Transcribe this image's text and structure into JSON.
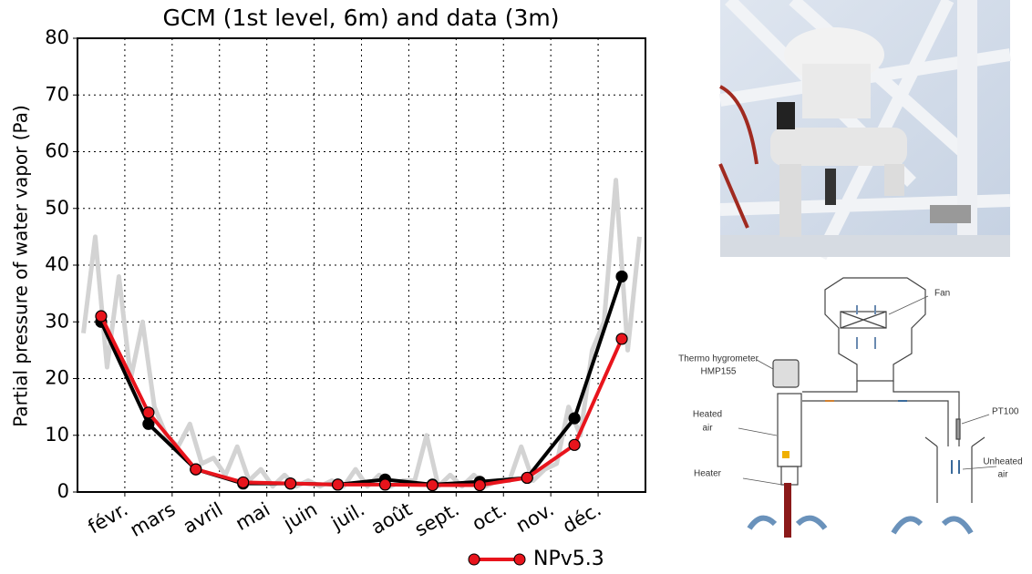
{
  "chart_data": {
    "type": "line",
    "title": "GCM (1st level, 6m) and data (3m)",
    "y_label": "Partial pressure of water vapor (Pa)",
    "xlim": [
      0,
      12
    ],
    "xticks": [
      {
        "value": 1,
        "label": "févr."
      },
      {
        "value": 2,
        "label": "mars"
      },
      {
        "value": 3,
        "label": "avril"
      },
      {
        "value": 4,
        "label": "mai"
      },
      {
        "value": 5,
        "label": "juin"
      },
      {
        "value": 6,
        "label": "juil."
      },
      {
        "value": 7,
        "label": "août"
      },
      {
        "value": 8,
        "label": "sept."
      },
      {
        "value": 9,
        "label": "oct."
      },
      {
        "value": 10,
        "label": "nov."
      },
      {
        "value": 11,
        "label": "déc."
      }
    ],
    "ylim": [
      0,
      80
    ],
    "yticks": [
      0,
      10,
      20,
      30,
      40,
      50,
      60,
      70,
      80
    ],
    "grid": true,
    "legend": "bottom",
    "series": [
      {
        "color": "#d3d3d3",
        "x": [
          0.125,
          0.375,
          0.625,
          0.875,
          1.125,
          1.375,
          1.625,
          1.875,
          2.125,
          2.375,
          2.625,
          2.875,
          3.125,
          3.375,
          3.625,
          3.875,
          4.125,
          4.375,
          4.625,
          4.875,
          5.125,
          5.375,
          5.625,
          5.875,
          6.125,
          6.375,
          6.625,
          6.875,
          7.125,
          7.375,
          7.625,
          7.875,
          8.125,
          8.375,
          8.625,
          8.875,
          9.125,
          9.375,
          9.625,
          9.875,
          10.125,
          10.375,
          10.625,
          10.875,
          11.125,
          11.375,
          11.625,
          11.875
        ],
        "values": [
          28,
          45,
          22,
          38,
          20,
          30,
          15,
          10,
          8,
          12,
          5,
          6,
          3,
          8,
          2,
          4,
          1,
          3,
          1,
          2,
          1,
          2,
          1,
          4,
          1,
          3,
          1,
          2,
          2,
          10,
          1,
          3,
          1,
          3,
          1,
          2,
          2,
          8,
          2,
          4,
          5,
          15,
          10,
          25,
          30,
          55,
          25,
          45
        ]
      },
      {
        "color": "#000000",
        "x": [
          0.5,
          1.5,
          2.5,
          3.5,
          4.5,
          5.5,
          6.5,
          7.5,
          8.5,
          9.5,
          10.5,
          11.5
        ],
        "values": [
          30,
          12,
          4,
          1.5,
          1.5,
          1.3,
          2.2,
          1.3,
          1.8,
          2.5,
          13,
          38
        ]
      },
      {
        "name": "NPv5.3",
        "color": "#e8141c",
        "x": [
          0.5,
          1.5,
          2.5,
          3.5,
          4.5,
          5.5,
          6.5,
          7.5,
          8.5,
          9.5,
          10.5,
          11.5
        ],
        "values": [
          31,
          14,
          4,
          1.7,
          1.5,
          1.3,
          1.3,
          1.2,
          1.2,
          2.5,
          8.3,
          27
        ]
      }
    ]
  },
  "diagram": {
    "labels": {
      "fan": "Fan",
      "hygrometer": [
        "Thermo hygrometer",
        "HMP155"
      ],
      "heated_air": [
        "Heated",
        "air"
      ],
      "heater": "Heater",
      "pt100": "PT100",
      "unheated_air": [
        "Unheated",
        "air"
      ]
    }
  }
}
